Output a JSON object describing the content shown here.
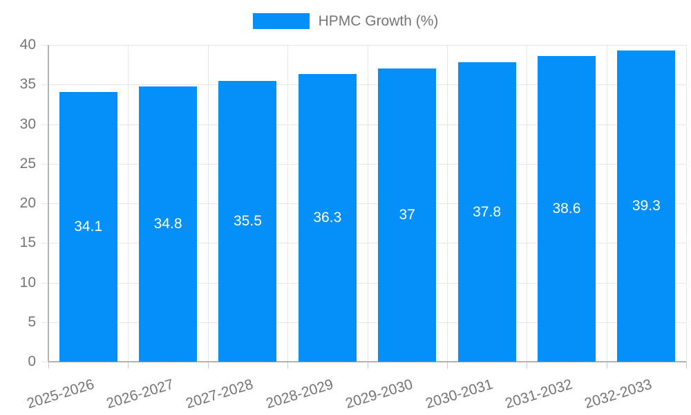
{
  "chart_data": {
    "type": "bar",
    "title": "",
    "categories": [
      "2025-2026",
      "2026-2027",
      "2027-2028",
      "2028-2029",
      "2029-2030",
      "2030-2031",
      "2031-2032",
      "2032-2033"
    ],
    "series": [
      {
        "name": "HPMC Growth (%)",
        "values": [
          34.1,
          34.8,
          35.5,
          36.3,
          37,
          37.8,
          38.6,
          39.3
        ],
        "value_labels": [
          "34.1",
          "34.8",
          "35.5",
          "36.3",
          "37",
          "37.8",
          "38.6",
          "39.3"
        ],
        "color": "#0490f8"
      }
    ],
    "xlabel": "",
    "ylabel": "",
    "ylim": [
      0,
      40
    ],
    "yticks": [
      0,
      5,
      10,
      15,
      20,
      25,
      30,
      35,
      40
    ],
    "grid": true,
    "legend_position": "top-center",
    "x_tick_rotation_deg": -17,
    "colors": {
      "bar": "#0490f8",
      "bar_value_label": "#ffffff",
      "axis_text": "#757575",
      "gridline": "#e6e6e6",
      "axis_line": "#b3b3b3",
      "tick_mark": "#c9c9c9",
      "background": "#ffffff"
    }
  }
}
